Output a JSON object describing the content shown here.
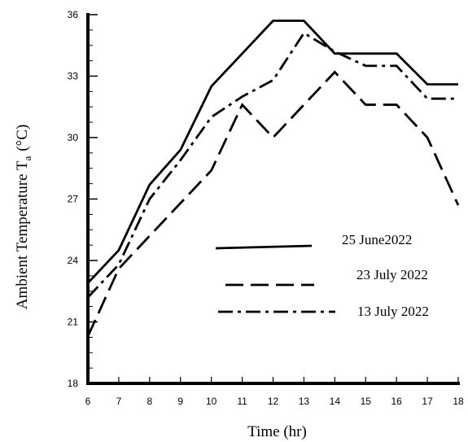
{
  "chart_data": {
    "type": "line",
    "title": "",
    "xlabel": "Time (hr)",
    "ylabel_main": "Ambient Temperature T",
    "ylabel_sub": "a",
    "ylabel_unit": "(°C)",
    "x": [
      6,
      7,
      8,
      9,
      10,
      11,
      12,
      13,
      14,
      15,
      16,
      17,
      18
    ],
    "xlim": [
      6,
      18
    ],
    "ylim": [
      18,
      36
    ],
    "yticks": [
      18,
      21,
      24,
      27,
      30,
      33,
      36
    ],
    "grid": false,
    "legend_position": "center-right",
    "series": [
      {
        "name": "25 June2022",
        "style": "solid",
        "values": [
          22.9,
          24.5,
          27.7,
          29.4,
          32.5,
          34.1,
          35.7,
          35.7,
          34.1,
          34.1,
          34.1,
          32.6,
          32.6
        ]
      },
      {
        "name": "23 July 2022",
        "style": "dashed",
        "values": [
          20.3,
          23.6,
          25.2,
          26.8,
          28.4,
          31.6,
          30.0,
          31.6,
          33.2,
          31.6,
          31.6,
          30.0,
          26.7
        ]
      },
      {
        "name": "13 July 2022",
        "style": "dashdot",
        "values": [
          22.2,
          23.8,
          27.0,
          28.9,
          31.0,
          32.0,
          32.8,
          35.1,
          34.2,
          33.5,
          33.5,
          31.9,
          31.9
        ]
      }
    ]
  }
}
